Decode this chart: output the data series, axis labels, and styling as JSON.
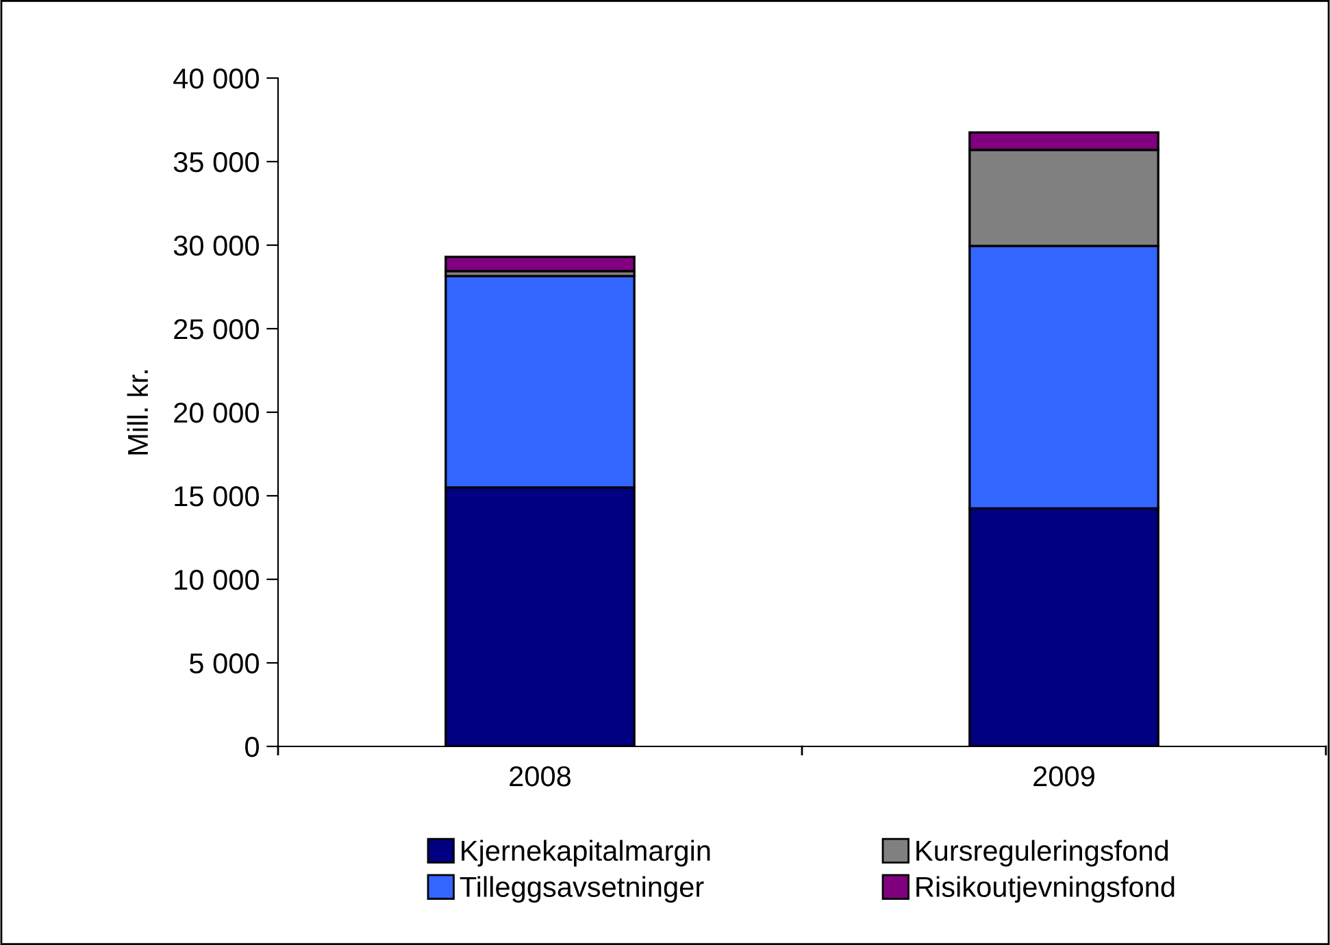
{
  "chart_data": {
    "type": "bar",
    "stacked": true,
    "ylabel": "Mill. kr.",
    "categories": [
      "2008",
      "2009"
    ],
    "series": [
      {
        "name": "Kjernekapitalmargin",
        "color": "#000080",
        "values": [
          15500,
          14250
        ]
      },
      {
        "name": "Tilleggsavsetninger",
        "color": "#3366ff",
        "values": [
          12650,
          15700
        ]
      },
      {
        "name": "Kursreguleringsfond",
        "color": "#808080",
        "values": [
          300,
          5750
        ]
      },
      {
        "name": "Risikoutjevningsfond",
        "color": "#800080",
        "values": [
          850,
          1050
        ]
      }
    ],
    "ylim": [
      0,
      40000
    ],
    "yticks": [
      {
        "value": 0,
        "label": "0"
      },
      {
        "value": 5000,
        "label": "5 000"
      },
      {
        "value": 10000,
        "label": "10 000"
      },
      {
        "value": 15000,
        "label": "15 000"
      },
      {
        "value": 20000,
        "label": "20 000"
      },
      {
        "value": 25000,
        "label": "25 000"
      },
      {
        "value": 30000,
        "label": "30 000"
      },
      {
        "value": 35000,
        "label": "35 000"
      },
      {
        "value": 40000,
        "label": "40 000"
      }
    ],
    "grid": false,
    "legend": "bottom"
  }
}
